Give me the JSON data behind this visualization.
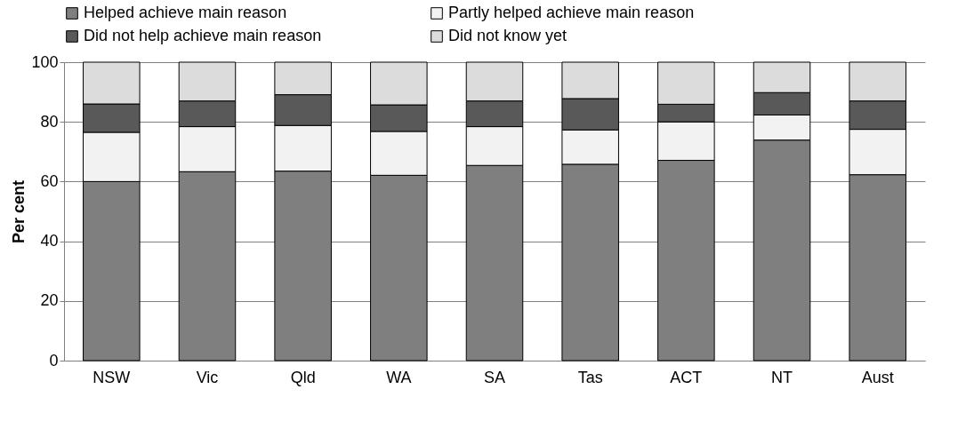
{
  "chart_data": {
    "type": "bar",
    "stacked": true,
    "ylabel": "Per cent",
    "categories": [
      "NSW",
      "Vic",
      "Qld",
      "WA",
      "SA",
      "Tas",
      "ACT",
      "NT",
      "Aust"
    ],
    "series": [
      {
        "name": "Helped achieve main reason",
        "color": "#7f7f7f",
        "values": [
          60.0,
          63.3,
          63.5,
          62.1,
          65.4,
          65.8,
          67.1,
          73.9,
          62.3
        ]
      },
      {
        "name": "Partly helped achieve main reason",
        "color": "#f2f2f2",
        "values": [
          16.5,
          15.1,
          15.3,
          14.7,
          13.0,
          11.5,
          12.9,
          8.4,
          15.2
        ]
      },
      {
        "name": "Did not help achieve main reason",
        "color": "#595959",
        "values": [
          9.5,
          8.6,
          10.3,
          8.9,
          8.6,
          10.5,
          5.9,
          7.5,
          9.5
        ]
      },
      {
        "name": "Did not know yet",
        "color": "#dcdcdc",
        "values": [
          14.0,
          13.0,
          10.9,
          14.3,
          13.0,
          12.2,
          14.1,
          10.2,
          13.0
        ]
      }
    ],
    "ylim": [
      0,
      100
    ],
    "yticks": [
      0,
      20,
      40,
      60,
      80,
      100
    ],
    "grid": "y",
    "legend": "top"
  }
}
